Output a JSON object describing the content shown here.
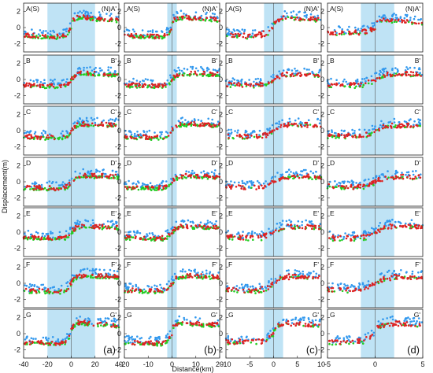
{
  "figure": {
    "xlabel": "Distance(km)",
    "ylabel": "Displacement(m)"
  },
  "chart_data": {
    "type": "scatter",
    "xlabel": "Distance(km)",
    "ylabel": "Displacement(m)",
    "ylim": [
      -3,
      3
    ],
    "yticks": [
      "2",
      "0",
      "-2"
    ],
    "row_labels": [
      {
        "left": "A(S)",
        "right": "(N)A'"
      },
      {
        "left": "B",
        "right": "B'"
      },
      {
        "left": "C",
        "right": "C'"
      },
      {
        "left": "D",
        "right": "D'"
      },
      {
        "left": "E",
        "right": "E'"
      },
      {
        "left": "F",
        "right": "F'"
      },
      {
        "left": "G",
        "right": "G'"
      }
    ],
    "series_colors": [
      "#3399ee",
      "#22cc22",
      "#dd2222"
    ],
    "shade_color": "#bfe3f5",
    "columns": [
      {
        "tag": "(a)",
        "xlim": [
          -40,
          40
        ],
        "xticks": [
          "-40",
          "-20",
          "0",
          "20",
          "40"
        ],
        "shade": [
          -20,
          20
        ],
        "steps": [
          2.3,
          1.7,
          1.8,
          1.7,
          1.6,
          2.1,
          2.5
        ]
      },
      {
        "tag": "(b)",
        "xlim": [
          -20,
          20
        ],
        "xticks": [
          "-20",
          "-10",
          "0",
          "10",
          "20"
        ],
        "shade": [
          -2,
          2
        ],
        "steps": [
          2.3,
          1.7,
          1.8,
          1.6,
          1.6,
          2.0,
          2.5
        ]
      },
      {
        "tag": "(c)",
        "xlim": [
          -10,
          10
        ],
        "xticks": [
          "-10",
          "-5",
          "0",
          "5",
          "10"
        ],
        "shade": [
          -2,
          2
        ],
        "steps": [
          2.3,
          1.6,
          1.7,
          1.6,
          1.6,
          2.0,
          2.4
        ]
      },
      {
        "tag": "(d)",
        "xlim": [
          -5,
          5
        ],
        "xticks": [
          "-5",
          "0",
          "5"
        ],
        "shade": [
          -1.5,
          2
        ],
        "steps": [
          1.6,
          1.7,
          1.6,
          1.5,
          1.8,
          1.9,
          2.4
        ]
      }
    ]
  }
}
